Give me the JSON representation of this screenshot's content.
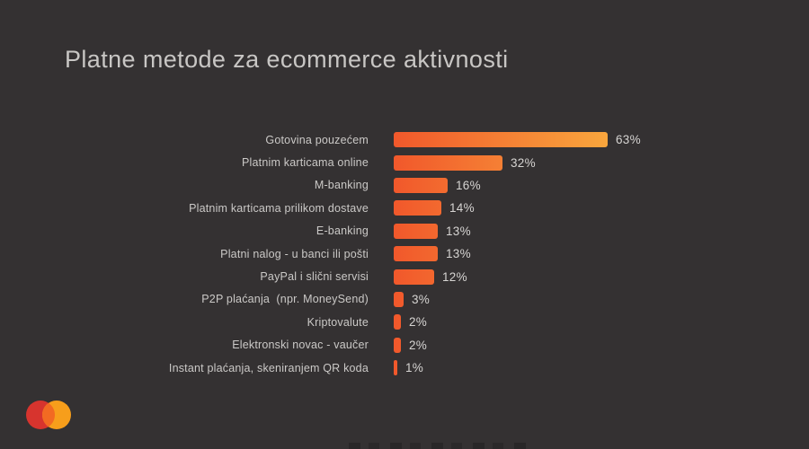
{
  "title": "Platne metode za ecommerce aktivnosti",
  "chart_data": {
    "type": "bar",
    "orientation": "horizontal",
    "title": "Platne metode za ecommerce aktivnosti",
    "categories": [
      "Gotovina pouzećem",
      "Platnim karticama online",
      "M-banking",
      "Platnim karticama prilikom dostave",
      "E-banking",
      "Platni nalog - u banci ili pošti",
      "PayPal i slični servisi",
      "P2P plaćanja  (npr. MoneySend)",
      "Kriptovalute",
      "Elektronski novac - vaučer",
      "Instant plaćanja, skeniranjem QR koda"
    ],
    "values": [
      63,
      32,
      16,
      14,
      13,
      13,
      12,
      3,
      2,
      2,
      1
    ],
    "value_labels": [
      "63%",
      "32%",
      "16%",
      "14%",
      "13%",
      "13%",
      "12%",
      "3%",
      "2%",
      "2%",
      "1%"
    ],
    "unit": "%",
    "xlabel": "",
    "ylabel": "",
    "xlim": [
      0,
      67
    ],
    "grid": false,
    "legend": false,
    "colors": {
      "background": "#343132",
      "title_text": "#C8C6C4",
      "category_text": "#CBC9C7",
      "value_text": "#D6D4D2",
      "bar_gradient_start": "#F1582B",
      "bar_gradient_end": "#F9A63D"
    }
  },
  "logo": {
    "name": "mastercard-logo",
    "colors": {
      "left_circle": "#D7342E",
      "right_circle": "#F79E1B",
      "overlap": "#F26A22"
    }
  }
}
